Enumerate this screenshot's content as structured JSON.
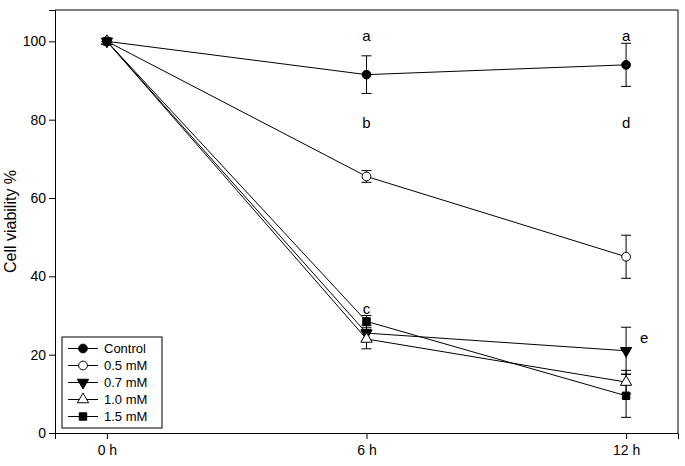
{
  "chart_data": {
    "type": "line",
    "y_label": "Cell viability %",
    "categories": [
      "0 h",
      "6 h",
      "12 h"
    ],
    "ylim": [
      0,
      108
    ],
    "yticks": [
      0,
      20,
      40,
      60,
      80,
      100
    ],
    "legend": "lower left",
    "series": [
      {
        "name": "Control",
        "color": "#000000",
        "marker": "circle",
        "values": [
          100,
          91.5,
          94
        ],
        "errors": [
          0,
          4.8,
          5.5
        ]
      },
      {
        "name": "0.5 mM",
        "color": "#000000",
        "marker": "open-circle",
        "values": [
          100,
          65.5,
          45
        ],
        "errors": [
          0,
          1.5,
          5.5
        ]
      },
      {
        "name": "0.7 mM",
        "color": "#000000",
        "marker": "triangle-down",
        "values": [
          100,
          25.5,
          21
        ],
        "errors": [
          0,
          2,
          6
        ]
      },
      {
        "name": "1.0 mM",
        "color": "#000000",
        "marker": "open-triangle",
        "values": [
          100,
          24,
          13
        ],
        "errors": [
          0,
          2.5,
          3
        ]
      },
      {
        "name": "1.5 mM",
        "color": "#000000",
        "marker": "square",
        "values": [
          100,
          28.5,
          9.5
        ],
        "errors": [
          0,
          1.5,
          5.5
        ]
      }
    ],
    "annotations": [
      {
        "text": "a",
        "x": 1,
        "y": 100
      },
      {
        "text": "a",
        "x": 2,
        "y": 100
      },
      {
        "text": "b",
        "x": 1,
        "y": 78
      },
      {
        "text": "d",
        "x": 2,
        "y": 78
      },
      {
        "text": "c",
        "x": 1,
        "y": 30.5
      },
      {
        "text": "e",
        "x": 2.07,
        "y": 23
      }
    ]
  }
}
